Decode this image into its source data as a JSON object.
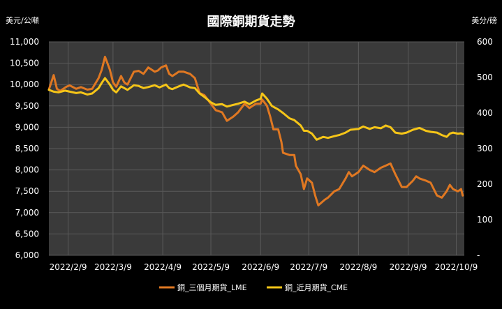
{
  "chart_data": {
    "type": "line",
    "title": "國際銅期貨走勢",
    "left_axis_unit": "美元/公噸",
    "right_axis_unit": "美分/磅",
    "grid": true,
    "legend_position": "bottom",
    "colors": {
      "background": "#000000",
      "plot_bg": "#3a3a3a",
      "grid": "#5a5a5a",
      "lme": "#e07822",
      "cme": "#f5c518"
    },
    "x_range": [
      "2022-01-28",
      "2022-10-14"
    ],
    "x_ticks": [
      {
        "date": "2022-02-09",
        "label": "2022/2/9"
      },
      {
        "date": "2022-03-09",
        "label": "2022/3/9"
      },
      {
        "date": "2022-04-09",
        "label": "2022/4/9"
      },
      {
        "date": "2022-05-09",
        "label": "2022/5/9"
      },
      {
        "date": "2022-06-09",
        "label": "2022/6/9"
      },
      {
        "date": "2022-07-09",
        "label": "2022/7/9"
      },
      {
        "date": "2022-08-09",
        "label": "2022/8/9"
      },
      {
        "date": "2022-09-09",
        "label": "2022/9/9"
      },
      {
        "date": "2022-10-09",
        "label": "2022/10/9"
      }
    ],
    "y_left": {
      "range": [
        6000,
        11000
      ],
      "ticks": [
        {
          "value": 11000,
          "label": "11,000"
        },
        {
          "value": 10500,
          "label": "10,500"
        },
        {
          "value": 10000,
          "label": "10,000"
        },
        {
          "value": 9500,
          "label": "9,500"
        },
        {
          "value": 9000,
          "label": "9,000"
        },
        {
          "value": 8500,
          "label": "8,500"
        },
        {
          "value": 8000,
          "label": "8,000"
        },
        {
          "value": 7500,
          "label": "7,500"
        },
        {
          "value": 7000,
          "label": "7,000"
        },
        {
          "value": 6500,
          "label": "6,500"
        },
        {
          "value": 6000,
          "label": "6,000"
        }
      ]
    },
    "y_right": {
      "range": [
        0,
        600
      ],
      "ticks": [
        {
          "value": 600,
          "label": "600"
        },
        {
          "value": 500,
          "label": "500"
        },
        {
          "value": 400,
          "label": "400"
        },
        {
          "value": 300,
          "label": "300"
        },
        {
          "value": 200,
          "label": "200"
        },
        {
          "value": 100,
          "label": "100"
        },
        {
          "value": 0,
          "label": "-"
        }
      ]
    },
    "series": [
      {
        "name": "銅_三個月期貨_LME",
        "axis": "left",
        "color": "#e07822",
        "points": [
          [
            "2022-01-28",
            9880
          ],
          [
            "2022-01-31",
            10220
          ],
          [
            "2022-02-02",
            9900
          ],
          [
            "2022-02-04",
            9850
          ],
          [
            "2022-02-08",
            9950
          ],
          [
            "2022-02-10",
            9980
          ],
          [
            "2022-02-14",
            9900
          ],
          [
            "2022-02-17",
            9940
          ],
          [
            "2022-02-21",
            9880
          ],
          [
            "2022-02-24",
            9900
          ],
          [
            "2022-02-28",
            10150
          ],
          [
            "2022-03-02",
            10350
          ],
          [
            "2022-03-04",
            10650
          ],
          [
            "2022-03-07",
            10350
          ],
          [
            "2022-03-09",
            10050
          ],
          [
            "2022-03-11",
            9950
          ],
          [
            "2022-03-14",
            10200
          ],
          [
            "2022-03-16",
            10050
          ],
          [
            "2022-03-18",
            10000
          ],
          [
            "2022-03-22",
            10300
          ],
          [
            "2022-03-25",
            10320
          ],
          [
            "2022-03-28",
            10250
          ],
          [
            "2022-03-31",
            10400
          ],
          [
            "2022-04-04",
            10300
          ],
          [
            "2022-04-06",
            10330
          ],
          [
            "2022-04-08",
            10400
          ],
          [
            "2022-04-11",
            10450
          ],
          [
            "2022-04-13",
            10250
          ],
          [
            "2022-04-15",
            10200
          ],
          [
            "2022-04-19",
            10300
          ],
          [
            "2022-04-22",
            10300
          ],
          [
            "2022-04-26",
            10250
          ],
          [
            "2022-04-29",
            10150
          ],
          [
            "2022-05-02",
            9800
          ],
          [
            "2022-05-05",
            9750
          ],
          [
            "2022-05-09",
            9550
          ],
          [
            "2022-05-12",
            9400
          ],
          [
            "2022-05-16",
            9350
          ],
          [
            "2022-05-19",
            9150
          ],
          [
            "2022-05-23",
            9250
          ],
          [
            "2022-05-26",
            9350
          ],
          [
            "2022-05-30",
            9550
          ],
          [
            "2022-06-02",
            9450
          ],
          [
            "2022-06-06",
            9550
          ],
          [
            "2022-06-09",
            9550
          ],
          [
            "2022-06-10",
            9650
          ],
          [
            "2022-06-13",
            9500
          ],
          [
            "2022-06-15",
            9250
          ],
          [
            "2022-06-17",
            8950
          ],
          [
            "2022-06-20",
            8950
          ],
          [
            "2022-06-22",
            8650
          ],
          [
            "2022-06-23",
            8400
          ],
          [
            "2022-06-27",
            8350
          ],
          [
            "2022-06-30",
            8350
          ],
          [
            "2022-07-01",
            8100
          ],
          [
            "2022-07-04",
            7900
          ],
          [
            "2022-07-06",
            7550
          ],
          [
            "2022-07-08",
            7800
          ],
          [
            "2022-07-11",
            7700
          ],
          [
            "2022-07-13",
            7400
          ],
          [
            "2022-07-15",
            7170
          ],
          [
            "2022-07-19",
            7300
          ],
          [
            "2022-07-21",
            7350
          ],
          [
            "2022-07-25",
            7500
          ],
          [
            "2022-07-28",
            7550
          ],
          [
            "2022-08-01",
            7800
          ],
          [
            "2022-08-03",
            7950
          ],
          [
            "2022-08-05",
            7850
          ],
          [
            "2022-08-09",
            7950
          ],
          [
            "2022-08-12",
            8100
          ],
          [
            "2022-08-16",
            8000
          ],
          [
            "2022-08-19",
            7950
          ],
          [
            "2022-08-23",
            8050
          ],
          [
            "2022-08-26",
            8100
          ],
          [
            "2022-08-29",
            8150
          ],
          [
            "2022-09-01",
            7900
          ],
          [
            "2022-09-05",
            7600
          ],
          [
            "2022-09-08",
            7600
          ],
          [
            "2022-09-12",
            7750
          ],
          [
            "2022-09-14",
            7850
          ],
          [
            "2022-09-16",
            7800
          ],
          [
            "2022-09-20",
            7750
          ],
          [
            "2022-09-23",
            7700
          ],
          [
            "2022-09-27",
            7400
          ],
          [
            "2022-09-30",
            7350
          ],
          [
            "2022-10-03",
            7500
          ],
          [
            "2022-10-05",
            7650
          ],
          [
            "2022-10-07",
            7550
          ],
          [
            "2022-10-10",
            7500
          ],
          [
            "2022-10-12",
            7550
          ],
          [
            "2022-10-13",
            7400
          ]
        ]
      },
      {
        "name": "銅_近月期貨_CME",
        "axis": "right",
        "color": "#f5c518",
        "points": [
          [
            "2022-01-28",
            465
          ],
          [
            "2022-01-31",
            460
          ],
          [
            "2022-02-03",
            458
          ],
          [
            "2022-02-07",
            463
          ],
          [
            "2022-02-10",
            460
          ],
          [
            "2022-02-14",
            456
          ],
          [
            "2022-02-17",
            458
          ],
          [
            "2022-02-21",
            452
          ],
          [
            "2022-02-24",
            455
          ],
          [
            "2022-02-28",
            470
          ],
          [
            "2022-03-02",
            485
          ],
          [
            "2022-03-04",
            498
          ],
          [
            "2022-03-07",
            480
          ],
          [
            "2022-03-09",
            465
          ],
          [
            "2022-03-11",
            458
          ],
          [
            "2022-03-14",
            475
          ],
          [
            "2022-03-16",
            470
          ],
          [
            "2022-03-18",
            465
          ],
          [
            "2022-03-22",
            478
          ],
          [
            "2022-03-25",
            476
          ],
          [
            "2022-03-28",
            470
          ],
          [
            "2022-03-31",
            473
          ],
          [
            "2022-04-04",
            478
          ],
          [
            "2022-04-07",
            472
          ],
          [
            "2022-04-11",
            480
          ],
          [
            "2022-04-13",
            470
          ],
          [
            "2022-04-15",
            467
          ],
          [
            "2022-04-19",
            475
          ],
          [
            "2022-04-22",
            480
          ],
          [
            "2022-04-26",
            472
          ],
          [
            "2022-04-29",
            470
          ],
          [
            "2022-05-02",
            455
          ],
          [
            "2022-05-05",
            445
          ],
          [
            "2022-05-09",
            430
          ],
          [
            "2022-05-12",
            423
          ],
          [
            "2022-05-16",
            425
          ],
          [
            "2022-05-19",
            418
          ],
          [
            "2022-05-23",
            423
          ],
          [
            "2022-05-26",
            426
          ],
          [
            "2022-05-30",
            432
          ],
          [
            "2022-06-02",
            425
          ],
          [
            "2022-06-06",
            435
          ],
          [
            "2022-06-09",
            440
          ],
          [
            "2022-06-10",
            455
          ],
          [
            "2022-06-13",
            440
          ],
          [
            "2022-06-16",
            420
          ],
          [
            "2022-06-20",
            410
          ],
          [
            "2022-06-23",
            400
          ],
          [
            "2022-06-27",
            385
          ],
          [
            "2022-06-30",
            380
          ],
          [
            "2022-07-04",
            365
          ],
          [
            "2022-07-06",
            350
          ],
          [
            "2022-07-08",
            350
          ],
          [
            "2022-07-11",
            342
          ],
          [
            "2022-07-14",
            325
          ],
          [
            "2022-07-18",
            333
          ],
          [
            "2022-07-21",
            330
          ],
          [
            "2022-07-25",
            335
          ],
          [
            "2022-07-28",
            338
          ],
          [
            "2022-08-01",
            345
          ],
          [
            "2022-08-04",
            353
          ],
          [
            "2022-08-09",
            355
          ],
          [
            "2022-08-12",
            362
          ],
          [
            "2022-08-16",
            355
          ],
          [
            "2022-08-19",
            360
          ],
          [
            "2022-08-23",
            357
          ],
          [
            "2022-08-26",
            365
          ],
          [
            "2022-08-29",
            360
          ],
          [
            "2022-09-01",
            345
          ],
          [
            "2022-09-05",
            342
          ],
          [
            "2022-09-08",
            345
          ],
          [
            "2022-09-12",
            353
          ],
          [
            "2022-09-16",
            358
          ],
          [
            "2022-09-20",
            350
          ],
          [
            "2022-09-23",
            347
          ],
          [
            "2022-09-27",
            345
          ],
          [
            "2022-09-30",
            338
          ],
          [
            "2022-10-03",
            333
          ],
          [
            "2022-10-05",
            342
          ],
          [
            "2022-10-07",
            345
          ],
          [
            "2022-10-10",
            342
          ],
          [
            "2022-10-12",
            343
          ],
          [
            "2022-10-13",
            341
          ]
        ]
      }
    ]
  }
}
